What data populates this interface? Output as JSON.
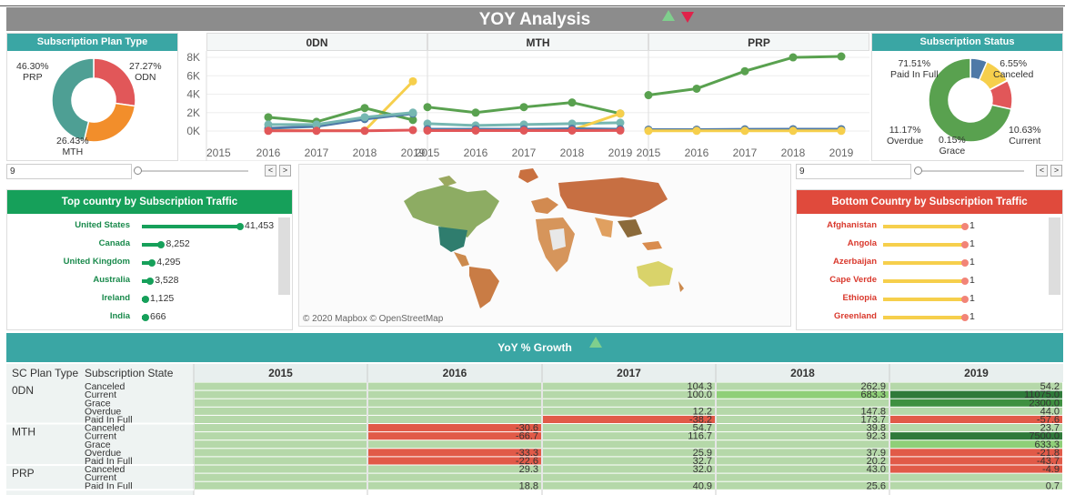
{
  "title": "YOY Analysis",
  "plan_type": {
    "header": "Subscription Plan Type",
    "slices": [
      {
        "label": "ODN",
        "pct": "27.27%",
        "value": 27.27,
        "color": "#e15759"
      },
      {
        "label": "MTH",
        "pct": "26.43%",
        "value": 26.43,
        "color": "#f28e2b"
      },
      {
        "label": "PRP",
        "pct": "46.30%",
        "value": 46.3,
        "color": "#4e9f94"
      }
    ]
  },
  "status": {
    "header": "Subscription Status",
    "slices": [
      {
        "label": "Canceled",
        "pct": "6.55%",
        "value": 6.55,
        "color": "#4e79a7"
      },
      {
        "label": "Current",
        "pct": "10.63%",
        "value": 10.63,
        "color": "#f6cf4c"
      },
      {
        "label": "Grace",
        "pct": "0.15%",
        "value": 0.15,
        "color": "#f28e2b"
      },
      {
        "label": "Overdue",
        "pct": "11.17%",
        "value": 11.17,
        "color": "#e15759"
      },
      {
        "label": "Paid In Full",
        "pct": "71.51%",
        "value": 71.51,
        "color": "#59a14f"
      }
    ],
    "extra_slice": {
      "value": 0,
      "color": "#76b7b2"
    }
  },
  "line_panels": [
    {
      "title": "0DN"
    },
    {
      "title": "MTH"
    },
    {
      "title": "PRP"
    }
  ],
  "chart_data": {
    "type": "line",
    "y_ticks": [
      "8K",
      "6K",
      "4K",
      "2K",
      "0K"
    ],
    "ylim": [
      0,
      8500
    ],
    "years": [
      "2015",
      "2016",
      "2017",
      "2018",
      "2019"
    ],
    "panels": [
      {
        "name": "0DN",
        "x": [
          "2016",
          "2017",
          "2018",
          "2019"
        ],
        "series": [
          {
            "color": "#f6cf4c",
            "values": [
              50,
              50,
              50,
              5400
            ]
          },
          {
            "color": "#59a14f",
            "values": [
              1500,
              1000,
              2500,
              1200
            ]
          },
          {
            "color": "#4e79a7",
            "values": [
              300,
              500,
              1300,
              1900
            ]
          },
          {
            "color": "#76b7b2",
            "values": [
              700,
              700,
              1500,
              2000
            ]
          },
          {
            "color": "#e15759",
            "values": [
              20,
              20,
              20,
              100
            ]
          }
        ]
      },
      {
        "name": "MTH",
        "x": [
          "2015",
          "2016",
          "2017",
          "2018",
          "2019"
        ],
        "series": [
          {
            "color": "#59a14f",
            "values": [
              2600,
              2000,
              2600,
              3100,
              1900
            ]
          },
          {
            "color": "#76b7b2",
            "values": [
              800,
              600,
              700,
              800,
              900
            ]
          },
          {
            "color": "#f6cf4c",
            "values": [
              100,
              100,
              100,
              100,
              1900
            ]
          },
          {
            "color": "#4e79a7",
            "values": [
              200,
              200,
              200,
              250,
              200
            ]
          },
          {
            "color": "#e15759",
            "values": [
              50,
              50,
              50,
              50,
              60
            ]
          }
        ]
      },
      {
        "name": "PRP",
        "x": [
          "2015",
          "2016",
          "2017",
          "2018",
          "2019"
        ],
        "series": [
          {
            "color": "#59a14f",
            "values": [
              3900,
              4600,
              6500,
              8000,
              8100
            ]
          },
          {
            "color": "#4e79a7",
            "values": [
              150,
              150,
              180,
              200,
              200
            ]
          },
          {
            "color": "#f6cf4c",
            "values": [
              20,
              20,
              20,
              20,
              20
            ]
          }
        ]
      }
    ]
  },
  "slider_left": {
    "value": "9"
  },
  "slider_right": {
    "value": "9"
  },
  "nav": {
    "prev": "<",
    "next": ">"
  },
  "top_countries": {
    "header": "Top country by Subscription Traffic",
    "max": 41453,
    "rows": [
      {
        "name": "United States",
        "value": 41453,
        "label": "41,453"
      },
      {
        "name": "Canada",
        "value": 8252,
        "label": "8,252"
      },
      {
        "name": "United Kingdom",
        "value": 4295,
        "label": "4,295"
      },
      {
        "name": "Australia",
        "value": 3528,
        "label": "3,528"
      },
      {
        "name": "Ireland",
        "value": 1125,
        "label": "1,125"
      },
      {
        "name": "India",
        "value": 666,
        "label": "666"
      }
    ]
  },
  "bottom_countries": {
    "header": "Bottom Country by Subscription Traffic",
    "rows": [
      {
        "name": "Afghanistan",
        "label": "1"
      },
      {
        "name": "Angola",
        "label": "1"
      },
      {
        "name": "Azerbaijan",
        "label": "1"
      },
      {
        "name": "Cape Verde",
        "label": "1"
      },
      {
        "name": "Ethiopia",
        "label": "1"
      },
      {
        "name": "Greenland",
        "label": "1"
      }
    ]
  },
  "map": {
    "attribution": "© 2020 Mapbox © OpenStreetMap"
  },
  "growth": {
    "header": "YoY % Growth",
    "col_plan": "SC Plan Type",
    "col_state": "Subscription State",
    "years": [
      "2015",
      "2016",
      "2017",
      "2018",
      "2019"
    ],
    "groups": [
      {
        "plan": "0DN",
        "rows": [
          {
            "state": "Canceled",
            "cells": [
              "",
              "",
              "104.3",
              "262.9",
              "54.2"
            ]
          },
          {
            "state": "Current",
            "cells": [
              "",
              "",
              "100.0",
              "683.3",
              "11075.0"
            ]
          },
          {
            "state": "Grace",
            "cells": [
              "",
              "",
              "",
              "",
              "2300.0"
            ]
          },
          {
            "state": "Overdue",
            "cells": [
              "",
              "",
              "12.2",
              "147.8",
              "44.0"
            ]
          },
          {
            "state": "Paid In Full",
            "cells": [
              "",
              "",
              "-38.2",
              "173.7",
              "-57.6"
            ]
          }
        ]
      },
      {
        "plan": "MTH",
        "rows": [
          {
            "state": "Canceled",
            "cells": [
              "",
              "-30.6",
              "54.7",
              "39.8",
              "23.7"
            ]
          },
          {
            "state": "Current",
            "cells": [
              "",
              "-66.7",
              "116.7",
              "92.3",
              "7500.0"
            ]
          },
          {
            "state": "Grace",
            "cells": [
              "",
              "",
              "",
              "",
              "633.3"
            ]
          },
          {
            "state": "Overdue",
            "cells": [
              "",
              "-33.3",
              "25.9",
              "37.9",
              "-21.8"
            ]
          },
          {
            "state": "Paid In Full",
            "cells": [
              "",
              "-22.6",
              "32.7",
              "20.2",
              "-43.7"
            ]
          }
        ]
      },
      {
        "plan": "PRP",
        "rows": [
          {
            "state": "Canceled",
            "cells": [
              "",
              "29.3",
              "32.0",
              "43.0",
              "-4.9"
            ]
          },
          {
            "state": "Current",
            "cells": [
              "",
              "",
              "",
              "",
              ""
            ]
          },
          {
            "state": "Paid In Full",
            "cells": [
              "",
              "18.8",
              "40.9",
              "25.6",
              "0.7"
            ]
          }
        ]
      }
    ]
  }
}
